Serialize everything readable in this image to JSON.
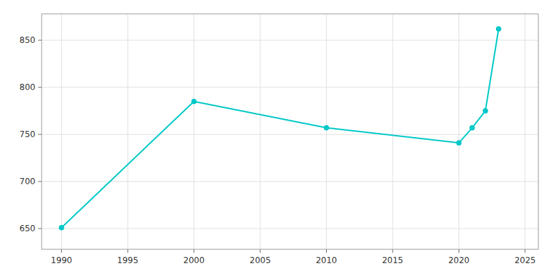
{
  "chart_data": {
    "type": "line",
    "x": [
      1990,
      2000,
      2010,
      2020,
      2021,
      2022,
      2023
    ],
    "values": [
      651,
      785,
      757,
      741,
      757,
      775,
      862
    ],
    "color": "#00C8C8",
    "marker": "circle",
    "xlim": [
      1988.5,
      2026
    ],
    "ylim": [
      628,
      878
    ],
    "xticks": [
      1990,
      1995,
      2000,
      2005,
      2010,
      2015,
      2020,
      2025
    ],
    "yticks": [
      650,
      700,
      750,
      800,
      850
    ],
    "grid": true
  }
}
